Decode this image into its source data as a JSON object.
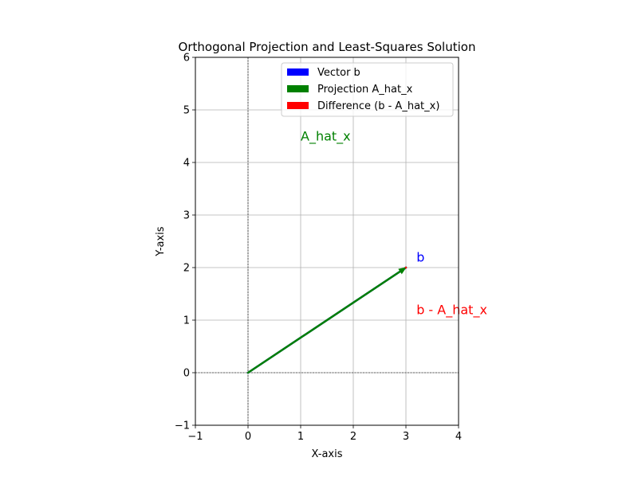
{
  "chart_data": {
    "type": "line",
    "title": "Orthogonal Projection and Least-Squares Solution",
    "xlabel": "X-axis",
    "ylabel": "Y-axis",
    "xlim": [
      -1,
      4
    ],
    "ylim": [
      -1,
      6
    ],
    "xticks": [
      -1,
      0,
      1,
      2,
      3,
      4
    ],
    "yticks": [
      -1,
      0,
      1,
      2,
      3,
      4,
      5,
      6
    ],
    "xtick_labels": [
      "−1",
      "0",
      "1",
      "2",
      "3",
      "4"
    ],
    "ytick_labels": [
      "−1",
      "0",
      "1",
      "2",
      "3",
      "4",
      "5",
      "6"
    ],
    "grid": true,
    "reference_lines": {
      "x": 0,
      "y": 0,
      "style": "dashed",
      "color": "#000000"
    },
    "legend_position": "top-right",
    "series": [
      {
        "name": "Vector b",
        "color": "#0000ff",
        "from": [
          0,
          0
        ],
        "to": [
          3,
          2
        ]
      },
      {
        "name": "Projection A_hat_x",
        "color": "#008000",
        "from": [
          0,
          0
        ],
        "to": [
          3,
          2
        ]
      },
      {
        "name": "Difference (b - A_hat_x)",
        "color": "#ff0000",
        "from": [
          3,
          2
        ],
        "to": [
          3,
          2
        ]
      }
    ],
    "annotations": [
      {
        "text": "b",
        "x": 3.2,
        "y": 2.2,
        "color": "#0000ff"
      },
      {
        "text": "A_hat_x",
        "x": 1.0,
        "y": 4.5,
        "color": "#008000"
      },
      {
        "text": "b - A_hat_x",
        "x": 3.2,
        "y": 1.2,
        "color": "#ff0000"
      }
    ]
  }
}
